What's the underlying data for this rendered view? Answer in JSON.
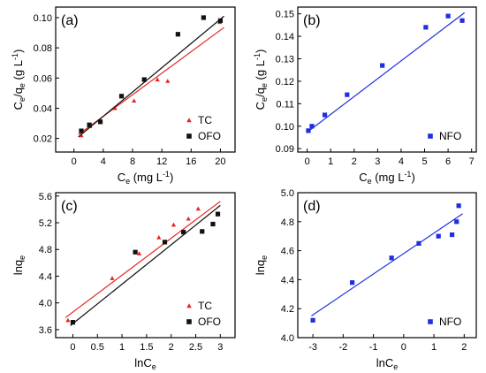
{
  "colors": {
    "red": "#e8231f",
    "black": "#111111",
    "blue": "#1f2fe0"
  },
  "chart_data": [
    {
      "type": "scatter",
      "panel_label": "(a)",
      "xlabel": {
        "main": "C",
        "sub": "e",
        "rest": " (mg L",
        "sup": "-1",
        "end": ")"
      },
      "ylabel": {
        "p1": "C",
        "s1": "e",
        "p2": "/q",
        "s2": "e",
        "p3": " (g L",
        "sup": "-1",
        "p4": ")"
      },
      "xlim": [
        -2.5,
        22
      ],
      "ylim": [
        0.011,
        0.107
      ],
      "xticks": [
        0,
        4,
        8,
        12,
        16,
        20
      ],
      "yticks": [
        0.02,
        0.04,
        0.06,
        0.08,
        0.1
      ],
      "ytick_labels": [
        "0.02",
        "0.04",
        "0.06",
        "0.08",
        "0.10"
      ],
      "legend_position": "bottom-right",
      "series": [
        {
          "name": "TC",
          "marker": "triangle",
          "color": "#e8231f",
          "x": [
            1.0,
            2.2,
            3.6,
            5.6,
            8.2,
            11.4,
            12.8,
            19.9
          ],
          "y": [
            0.022,
            0.028,
            0.032,
            0.04,
            0.045,
            0.059,
            0.058,
            0.097
          ],
          "fit": {
            "x": [
              0.6,
              20.5
            ],
            "y": [
              0.0225,
              0.0935
            ]
          }
        },
        {
          "name": "OFO",
          "marker": "square",
          "color": "#111111",
          "x": [
            1.0,
            2.1,
            3.6,
            6.5,
            9.6,
            14.2,
            17.7,
            20.0
          ],
          "y": [
            0.025,
            0.029,
            0.031,
            0.048,
            0.059,
            0.089,
            0.1,
            0.098
          ],
          "fit": {
            "x": [
              0.6,
              20.5
            ],
            "y": [
              0.021,
              0.101
            ]
          }
        }
      ]
    },
    {
      "type": "scatter",
      "panel_label": "(b)",
      "xlabel": {
        "main": "C",
        "sub": "e",
        "rest": " (mg L",
        "sup": "-1",
        "end": ")"
      },
      "ylabel": {
        "p1": "C",
        "s1": "e",
        "p2": "/q",
        "s2": "e",
        "p3": " (g L",
        "sup": "-1",
        "p4": ")"
      },
      "xlim": [
        -0.4,
        7.2
      ],
      "ylim": [
        0.0885,
        0.153
      ],
      "xticks": [
        0,
        1,
        2,
        3,
        4,
        5,
        6,
        7
      ],
      "yticks": [
        0.09,
        0.1,
        0.11,
        0.12,
        0.13,
        0.14,
        0.15
      ],
      "ytick_labels": [
        "0.09",
        "0.10",
        "0.11",
        "0.12",
        "0.13",
        "0.14",
        "0.15"
      ],
      "legend_position": "bottom-right",
      "series": [
        {
          "name": "NFO",
          "marker": "square",
          "color": "#1f2fe0",
          "x": [
            0.05,
            0.2,
            0.75,
            1.7,
            3.2,
            5.05,
            6.0,
            6.6
          ],
          "y": [
            0.098,
            0.1,
            0.105,
            0.114,
            0.127,
            0.144,
            0.149,
            0.147
          ],
          "fit": {
            "x": [
              0.0,
              6.7
            ],
            "y": [
              0.0973,
              0.1505
            ]
          }
        }
      ]
    },
    {
      "type": "scatter",
      "panel_label": "(c)",
      "xlabel": {
        "main": "lnC",
        "sub": "e",
        "rest": "",
        "sup": "",
        "end": ""
      },
      "ylabel": {
        "p1": "lnq",
        "s1": "e",
        "p2": "",
        "s2": "",
        "p3": "",
        "sup": "",
        "p4": ""
      },
      "xlim": [
        -0.35,
        3.3
      ],
      "ylim": [
        3.48,
        5.65
      ],
      "xticks": [
        0.0,
        0.5,
        1.0,
        1.5,
        2.0,
        2.5,
        3.0
      ],
      "yticks": [
        3.6,
        4.0,
        4.4,
        4.8,
        5.2,
        5.6
      ],
      "ytick_labels": [
        "3.6",
        "4.0",
        "4.4",
        "4.8",
        "5.2",
        "5.6"
      ],
      "legend_position": "bottom-right",
      "series": [
        {
          "name": "TC",
          "marker": "triangle",
          "color": "#e8231f",
          "x": [
            -0.1,
            0.8,
            1.35,
            1.75,
            2.05,
            2.35,
            2.55,
            2.95
          ],
          "y": [
            3.74,
            4.37,
            4.74,
            4.98,
            5.17,
            5.26,
            5.41,
            5.34
          ],
          "fit": {
            "x": [
              -0.15,
              3.0
            ],
            "y": [
              3.78,
              5.52
            ]
          }
        },
        {
          "name": "OFO",
          "marker": "square",
          "color": "#111111",
          "x": [
            0.0,
            1.27,
            1.87,
            2.25,
            2.63,
            2.85,
            2.95
          ],
          "y": [
            3.71,
            4.76,
            4.91,
            5.06,
            5.07,
            5.18,
            5.33
          ],
          "fit": {
            "x": [
              -0.05,
              3.0
            ],
            "y": [
              3.66,
              5.46
            ]
          }
        }
      ]
    },
    {
      "type": "scatter",
      "panel_label": "(d)",
      "xlabel": {
        "main": "lnC",
        "sub": "e",
        "rest": "",
        "sup": "",
        "end": ""
      },
      "ylabel": {
        "p1": "lnq",
        "s1": "e",
        "p2": "",
        "s2": "",
        "p3": "",
        "sup": "",
        "p4": ""
      },
      "xlim": [
        -3.5,
        2.4
      ],
      "ylim": [
        4.0,
        5.0
      ],
      "xticks": [
        -3,
        -2,
        -1,
        0,
        1,
        2
      ],
      "yticks": [
        4.0,
        4.2,
        4.4,
        4.6,
        4.8,
        5.0
      ],
      "ytick_labels": [
        "4.0",
        "4.2",
        "4.4",
        "4.6",
        "4.8",
        "5.0"
      ],
      "legend_position": "bottom-right",
      "series": [
        {
          "name": "NFO",
          "marker": "square",
          "color": "#1f2fe0",
          "x": [
            -3.0,
            -1.7,
            -0.4,
            0.5,
            1.15,
            1.6,
            1.75,
            1.82
          ],
          "y": [
            4.12,
            4.38,
            4.55,
            4.65,
            4.7,
            4.71,
            4.8,
            4.91
          ],
          "fit": {
            "x": [
              -3.05,
              1.95
            ],
            "y": [
              4.15,
              4.855
            ]
          }
        }
      ]
    }
  ]
}
